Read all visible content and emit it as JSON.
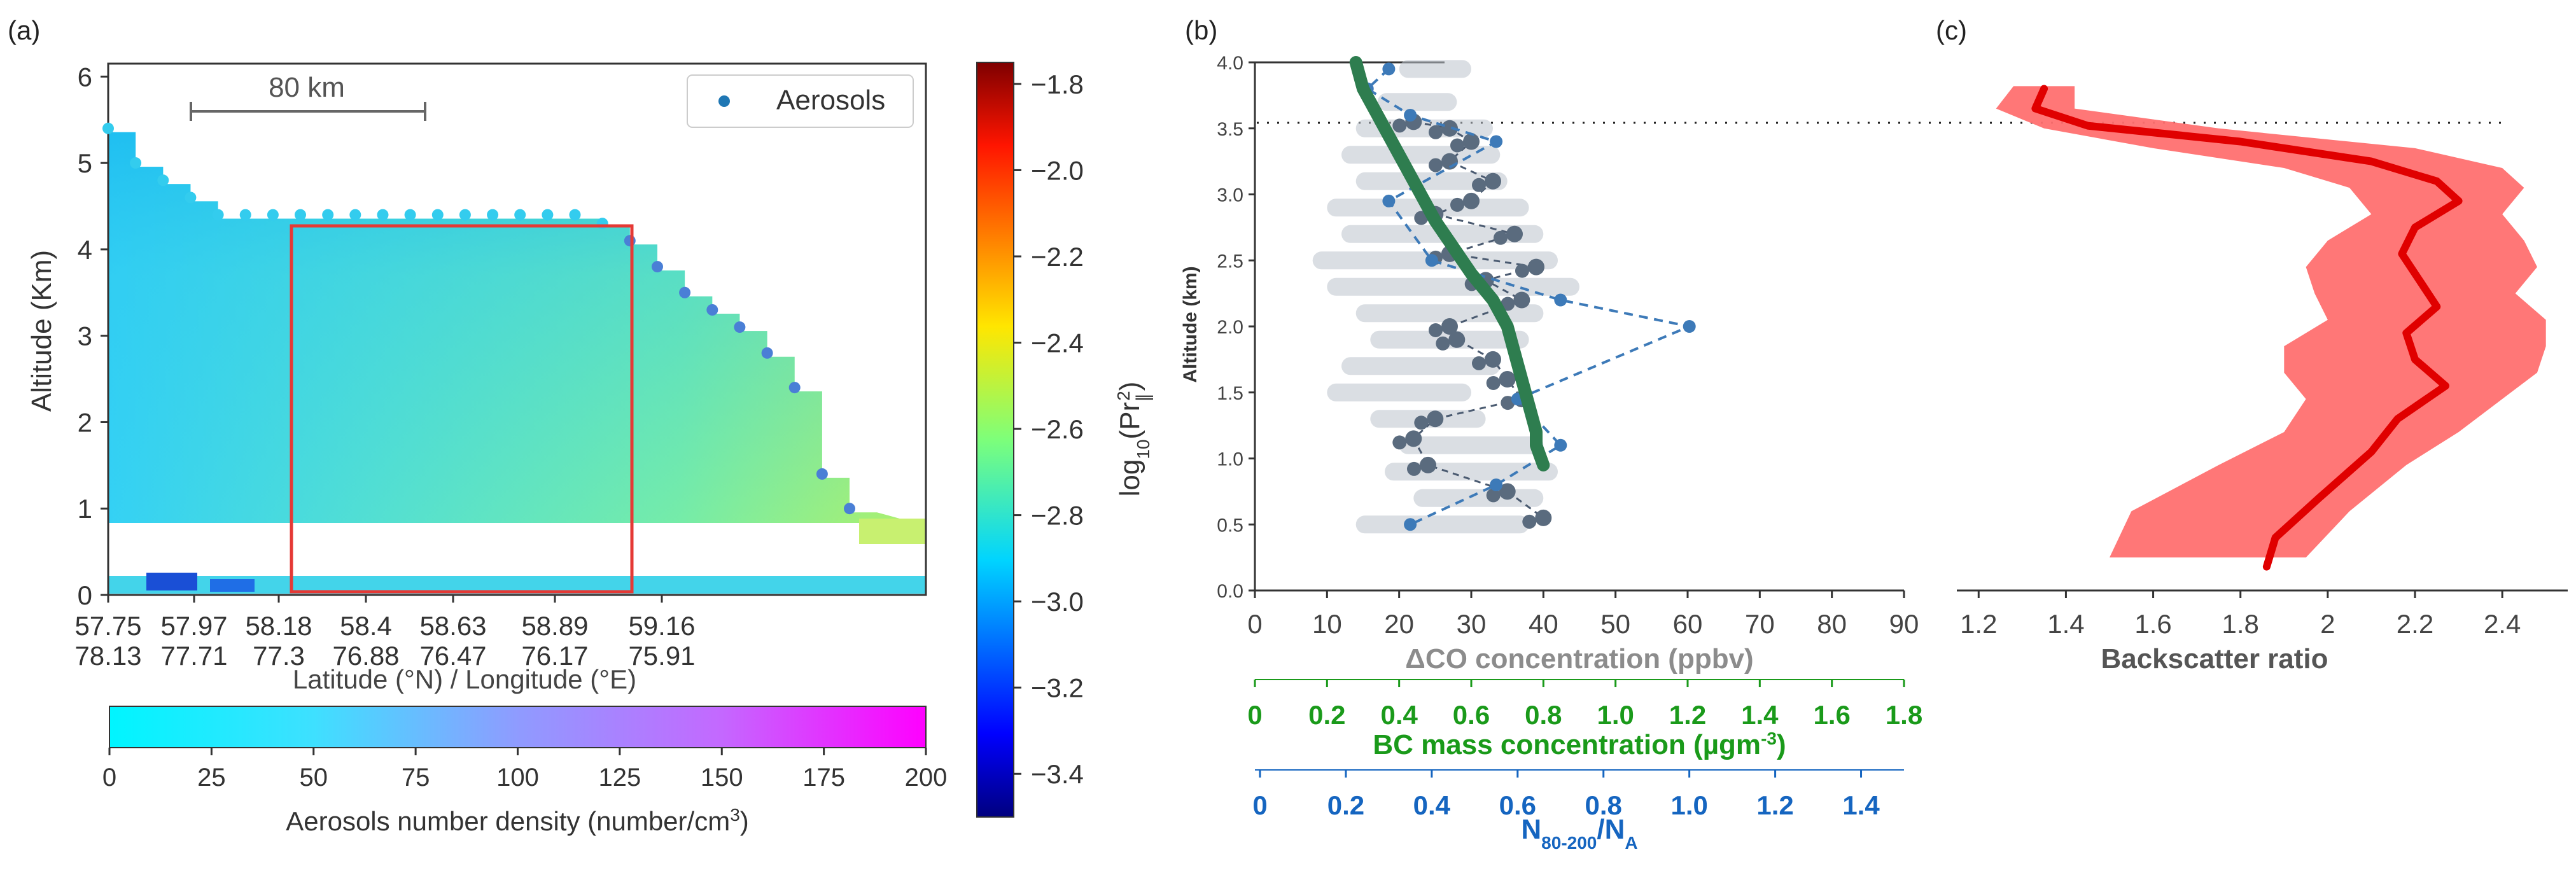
{
  "chart_data": [
    {
      "panel": "(a)",
      "type": "heatmap",
      "title": "",
      "ylabel": "Altitude (Km)",
      "xlabel": "Latitude (°N) / Longitude (°E)",
      "yticks": [
        "0",
        "1",
        "2",
        "3",
        "4",
        "5",
        "6"
      ],
      "ylim": [
        0,
        6.15
      ],
      "xticks_lat": [
        "57.75",
        "57.97",
        "58.18",
        "58.4",
        "58.63",
        "58.89",
        "59.16"
      ],
      "xticks_lon": [
        "78.13",
        "77.71",
        "77.3",
        "76.88",
        "76.47",
        "76.17",
        "75.91"
      ],
      "scale_bar_label": "80 km",
      "legend": [
        "Aerosols"
      ],
      "colorbar": {
        "label": "log10(Pr_∥²)",
        "label_main": "log",
        "label_sub": "10",
        "label_rest": "(Pr",
        "label_sup": "2",
        "label_sub2": "∥",
        "label_end": ")",
        "ticks": [
          "−1.8",
          "−2.0",
          "−2.2",
          "−2.4",
          "−2.6",
          "−2.8",
          "−3.0",
          "−3.2",
          "−3.4"
        ],
        "range": [
          -3.5,
          -1.75
        ]
      },
      "density_colorbar": {
        "label": "Aerosols number density (number/cm",
        "label_sup": "3",
        "label_end": ")",
        "ticks": [
          "0",
          "25",
          "50",
          "75",
          "100",
          "125",
          "150",
          "175",
          "200"
        ],
        "range": [
          0,
          200
        ]
      },
      "aerosol_tops_km": [
        5.4,
        5.0,
        4.8,
        4.6,
        4.4,
        4.4,
        4.4,
        4.4,
        4.4,
        4.4,
        4.4,
        4.4,
        4.4,
        4.4,
        4.4,
        4.4,
        4.4,
        4.4,
        4.3,
        4.1,
        3.8,
        3.5,
        3.3,
        3.1,
        2.8,
        2.4,
        1.4,
        1.0
      ],
      "highlight_box_km": [
        0,
        4.25
      ],
      "colors": {
        "box": "#e53935",
        "aerosol_point": "#33ccee",
        "legend_point": "#1f77b4"
      }
    },
    {
      "panel": "(b)",
      "type": "line",
      "ylabel": "Altitude (km)",
      "yticks": [
        "0.0",
        "0.5",
        "1.0",
        "1.5",
        "2.0",
        "2.5",
        "3.0",
        "3.5",
        "4.0"
      ],
      "ylim": [
        0,
        4.0
      ],
      "axes": [
        {
          "label": "ΔCO concentration (ppbv)",
          "ticks": [
            "0",
            "10",
            "20",
            "30",
            "40",
            "50",
            "60",
            "70",
            "80",
            "90"
          ],
          "range": [
            0,
            90
          ],
          "color": "#8c8c8c"
        },
        {
          "label": "BC mass concentration (µgm",
          "label_sup": "-3",
          "label_end": ")",
          "ticks": [
            "0",
            "0.2",
            "0.4",
            "0.6",
            "0.8",
            "1.0",
            "1.2",
            "1.4",
            "1.6",
            "1.8"
          ],
          "range": [
            0,
            1.8
          ],
          "color": "#1a9a1a"
        },
        {
          "label_main": "N",
          "label_sub": "80-200",
          "label_rest": "/N",
          "label_sub2": "A",
          "ticks": [
            "0",
            "0.2",
            "0.4",
            "0.6",
            "0.8",
            "1.0",
            "1.2",
            "1.4"
          ],
          "range": [
            0,
            1.5
          ],
          "color": "#1565c0"
        }
      ],
      "series": [
        {
          "name": "BC mass concentration",
          "color": "#2e7d4f",
          "x": [
            0.28,
            0.3,
            0.34,
            0.38,
            0.42,
            0.46,
            0.5,
            0.55,
            0.6,
            0.66,
            0.7,
            0.72,
            0.74,
            0.76,
            0.78,
            0.78,
            0.8
          ],
          "y": [
            4.0,
            3.8,
            3.6,
            3.4,
            3.2,
            3.0,
            2.8,
            2.6,
            2.4,
            2.2,
            2.0,
            1.8,
            1.6,
            1.4,
            1.2,
            1.1,
            0.95
          ]
        },
        {
          "name": "N80-200/NA",
          "color": "#3d7ab8",
          "x": [
            0.3,
            0.25,
            0.35,
            0.55,
            0.3,
            0.4,
            0.7,
            1.0,
            0.6,
            0.7,
            0.55,
            0.35
          ],
          "y": [
            3.95,
            3.8,
            3.6,
            3.4,
            2.95,
            2.5,
            2.2,
            2.0,
            1.45,
            1.1,
            0.8,
            0.5
          ]
        },
        {
          "name": "ΔCO concentration",
          "color": "#5a6b7e",
          "x": [
            22,
            27,
            30,
            27,
            33,
            30,
            25,
            36,
            27,
            39,
            32,
            37,
            27,
            28,
            33,
            35,
            37,
            25,
            22,
            24,
            35,
            40
          ],
          "y": [
            3.55,
            3.5,
            3.4,
            3.25,
            3.1,
            2.95,
            2.85,
            2.7,
            2.55,
            2.45,
            2.35,
            2.2,
            2.0,
            1.9,
            1.75,
            1.6,
            1.45,
            1.3,
            1.15,
            0.95,
            0.75,
            0.55
          ]
        }
      ],
      "reference_line_km": 3.55
    },
    {
      "panel": "(c)",
      "type": "line",
      "xlabel": "Backscatter ratio",
      "xticks": [
        "1.2",
        "1.4",
        "1.6",
        "1.8",
        "2",
        "2.2",
        "2.4"
      ],
      "xlim": [
        1.15,
        2.55
      ],
      "series": [
        {
          "name": "Backscatter ratio (mean)",
          "color": "#e00000",
          "x": [
            1.35,
            1.33,
            1.45,
            1.8,
            2.1,
            2.25,
            2.3,
            2.2,
            2.17,
            2.21,
            2.25,
            2.18,
            2.2,
            2.27,
            2.16,
            2.1,
            1.98,
            1.88,
            1.86
          ],
          "y": [
            3.8,
            3.65,
            3.52,
            3.4,
            3.25,
            3.1,
            2.95,
            2.75,
            2.55,
            2.35,
            2.15,
            1.95,
            1.75,
            1.55,
            1.3,
            1.05,
            0.7,
            0.4,
            0.18
          ]
        }
      ],
      "band_upper": [
        1.42,
        1.42,
        1.75,
        2.2,
        2.4,
        2.45,
        2.4,
        2.45,
        2.48,
        2.43,
        2.5,
        2.5,
        2.48,
        2.4,
        2.3,
        2.18,
        2.05,
        1.95
      ],
      "band_lower": [
        1.28,
        1.24,
        1.35,
        1.6,
        1.9,
        2.05,
        2.1,
        2.0,
        1.95,
        1.97,
        2.0,
        1.9,
        1.9,
        1.95,
        1.9,
        1.75,
        1.55,
        1.5
      ],
      "band_y": [
        3.82,
        3.65,
        3.5,
        3.35,
        3.2,
        3.05,
        2.85,
        2.65,
        2.45,
        2.25,
        2.05,
        1.85,
        1.65,
        1.45,
        1.2,
        0.95,
        0.6,
        0.25
      ],
      "colors": {
        "band": "#ff7070",
        "line": "#e00000"
      }
    }
  ]
}
